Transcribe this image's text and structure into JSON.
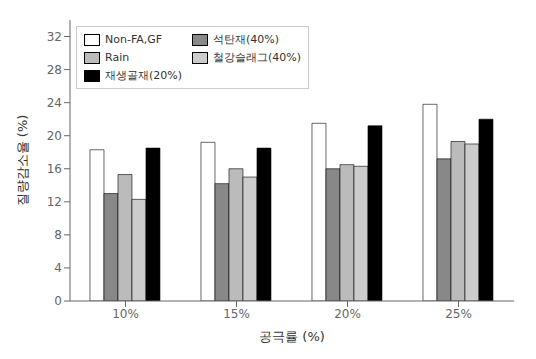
{
  "chart_data": {
    "type": "bar",
    "categories": [
      "10%",
      "15%",
      "20%",
      "25%"
    ],
    "series": [
      {
        "name": "Non-FA,GF",
        "color": "white",
        "values": [
          18.3,
          19.2,
          21.5,
          23.8
        ]
      },
      {
        "name": "석탄재(40%)",
        "color": "#888888",
        "values": [
          13.0,
          14.2,
          16.0,
          17.2
        ]
      },
      {
        "name": "Rain",
        "color": "#bbbbbb",
        "values": [
          15.3,
          16.0,
          16.5,
          19.3
        ]
      },
      {
        "name": "철강슬래그(40%)",
        "color": "#cccccc",
        "values": [
          12.3,
          15.0,
          16.3,
          19.0
        ]
      },
      {
        "name": "재생골재(20%)",
        "color": "black",
        "values": [
          18.5,
          18.5,
          21.2,
          22.0
        ]
      }
    ],
    "xlabel": "공극률 (%)",
    "ylabel": "질량감소율 (%)",
    "ylim": [
      0,
      34
    ],
    "yticks": [
      0,
      4,
      8,
      12,
      16,
      20,
      24,
      28,
      32
    ],
    "grid": false,
    "legend": "upper left"
  }
}
